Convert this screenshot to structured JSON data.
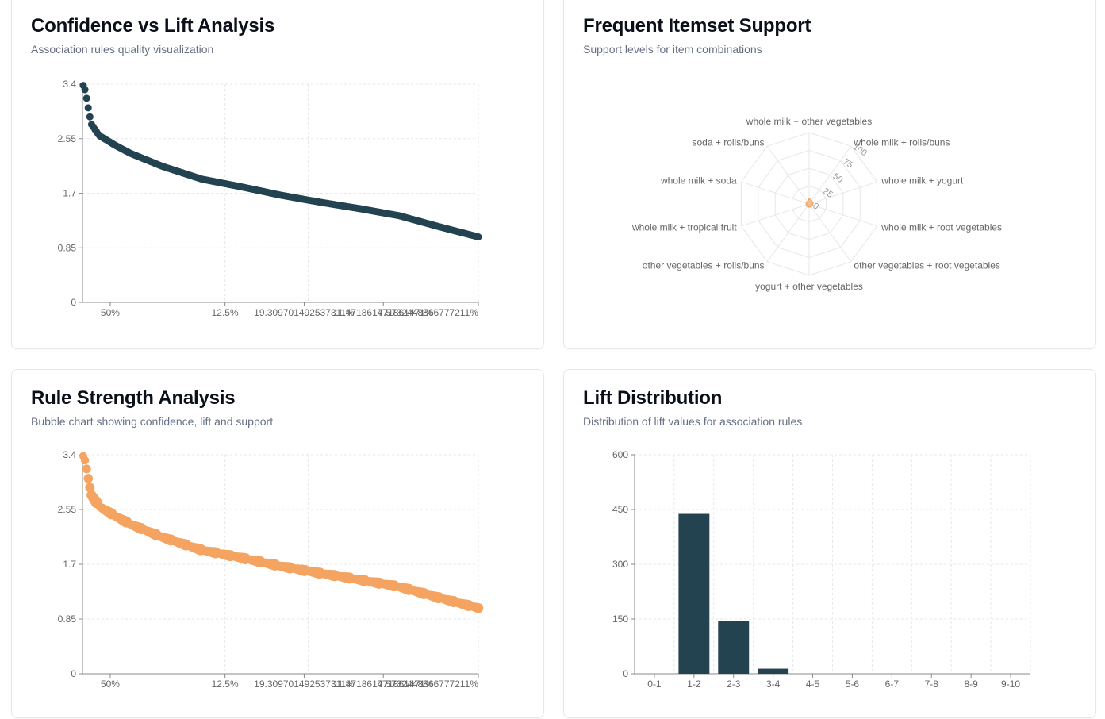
{
  "colors": {
    "dark": "#234351",
    "orange": "#f4a460",
    "grid": "#e5e7eb",
    "axis": "#888888",
    "tick": "#666666"
  },
  "cards": [
    {
      "title": "Confidence vs Lift Analysis",
      "subtitle": "Association rules quality visualization"
    },
    {
      "title": "Frequent Itemset Support",
      "subtitle": "Support levels for item combinations"
    },
    {
      "title": "Rule Strength Analysis",
      "subtitle": "Bubble chart showing confidence, lift and support"
    },
    {
      "title": "Lift Distribution",
      "subtitle": "Distribution of lift values for association rules"
    }
  ],
  "chart_data": [
    {
      "type": "scatter",
      "title": "Confidence vs Lift Analysis",
      "x_tick_labels": [
        "50%",
        "12.5%",
        "19.309701492537311%",
        "11.471861471861471%",
        "7.5732448866777211%"
      ],
      "y_ticks": [
        0,
        0.85,
        1.7,
        2.55,
        3.4
      ],
      "ylim": [
        0,
        3.4
      ],
      "grid": true,
      "color": "dark",
      "lift_curve": [
        [
          0,
          3.38
        ],
        [
          0.005,
          3.3
        ],
        [
          0.012,
          3.05
        ],
        [
          0.02,
          2.78
        ],
        [
          0.04,
          2.6
        ],
        [
          0.08,
          2.45
        ],
        [
          0.12,
          2.32
        ],
        [
          0.2,
          2.12
        ],
        [
          0.3,
          1.92
        ],
        [
          0.4,
          1.8
        ],
        [
          0.5,
          1.67
        ],
        [
          0.6,
          1.56
        ],
        [
          0.7,
          1.46
        ],
        [
          0.8,
          1.35
        ],
        [
          0.9,
          1.18
        ],
        [
          1.0,
          1.02
        ]
      ]
    },
    {
      "type": "radar",
      "title": "Frequent Itemset Support",
      "categories": [
        "whole milk + other vegetables",
        "whole milk + rolls/buns",
        "whole milk + yogurt",
        "whole milk + root vegetables",
        "other vegetables + root vegetables",
        "yogurt + other vegetables",
        "other vegetables + rolls/buns",
        "whole milk + tropical fruit",
        "whole milk + soda",
        "soda + rolls/buns"
      ],
      "radial_ticks": [
        0,
        25,
        50,
        75,
        100
      ],
      "radial_range": [
        0,
        100
      ],
      "values": [
        7.5,
        5.7,
        5.6,
        4.9,
        4.7,
        4.3,
        4.2,
        4.2,
        4.0,
        3.8
      ],
      "color": "orange"
    },
    {
      "type": "scatter",
      "title": "Rule Strength Analysis",
      "x_tick_labels": [
        "50%",
        "12.5%",
        "19.309701492537311%",
        "11.471861471861471%",
        "7.5732448866777211%"
      ],
      "y_ticks": [
        0,
        0.85,
        1.7,
        2.55,
        3.4
      ],
      "ylim": [
        0,
        3.4
      ],
      "grid": true,
      "color": "orange",
      "lift_curve": [
        [
          0,
          3.38
        ],
        [
          0.005,
          3.3
        ],
        [
          0.012,
          3.05
        ],
        [
          0.02,
          2.78
        ],
        [
          0.04,
          2.6
        ],
        [
          0.08,
          2.45
        ],
        [
          0.12,
          2.32
        ],
        [
          0.2,
          2.12
        ],
        [
          0.3,
          1.92
        ],
        [
          0.4,
          1.8
        ],
        [
          0.5,
          1.67
        ],
        [
          0.6,
          1.56
        ],
        [
          0.7,
          1.46
        ],
        [
          0.8,
          1.35
        ],
        [
          0.9,
          1.18
        ],
        [
          1.0,
          1.02
        ]
      ]
    },
    {
      "type": "bar",
      "title": "Lift Distribution",
      "categories": [
        "0-1",
        "1-2",
        "2-3",
        "3-4",
        "4-5",
        "5-6",
        "6-7",
        "7-8",
        "8-9",
        "9-10"
      ],
      "values": [
        0,
        438,
        145,
        14,
        0,
        0,
        0,
        0,
        0,
        0
      ],
      "y_ticks": [
        0,
        150,
        300,
        450,
        600
      ],
      "ylim": [
        0,
        600
      ],
      "grid": true,
      "color": "dark"
    }
  ]
}
